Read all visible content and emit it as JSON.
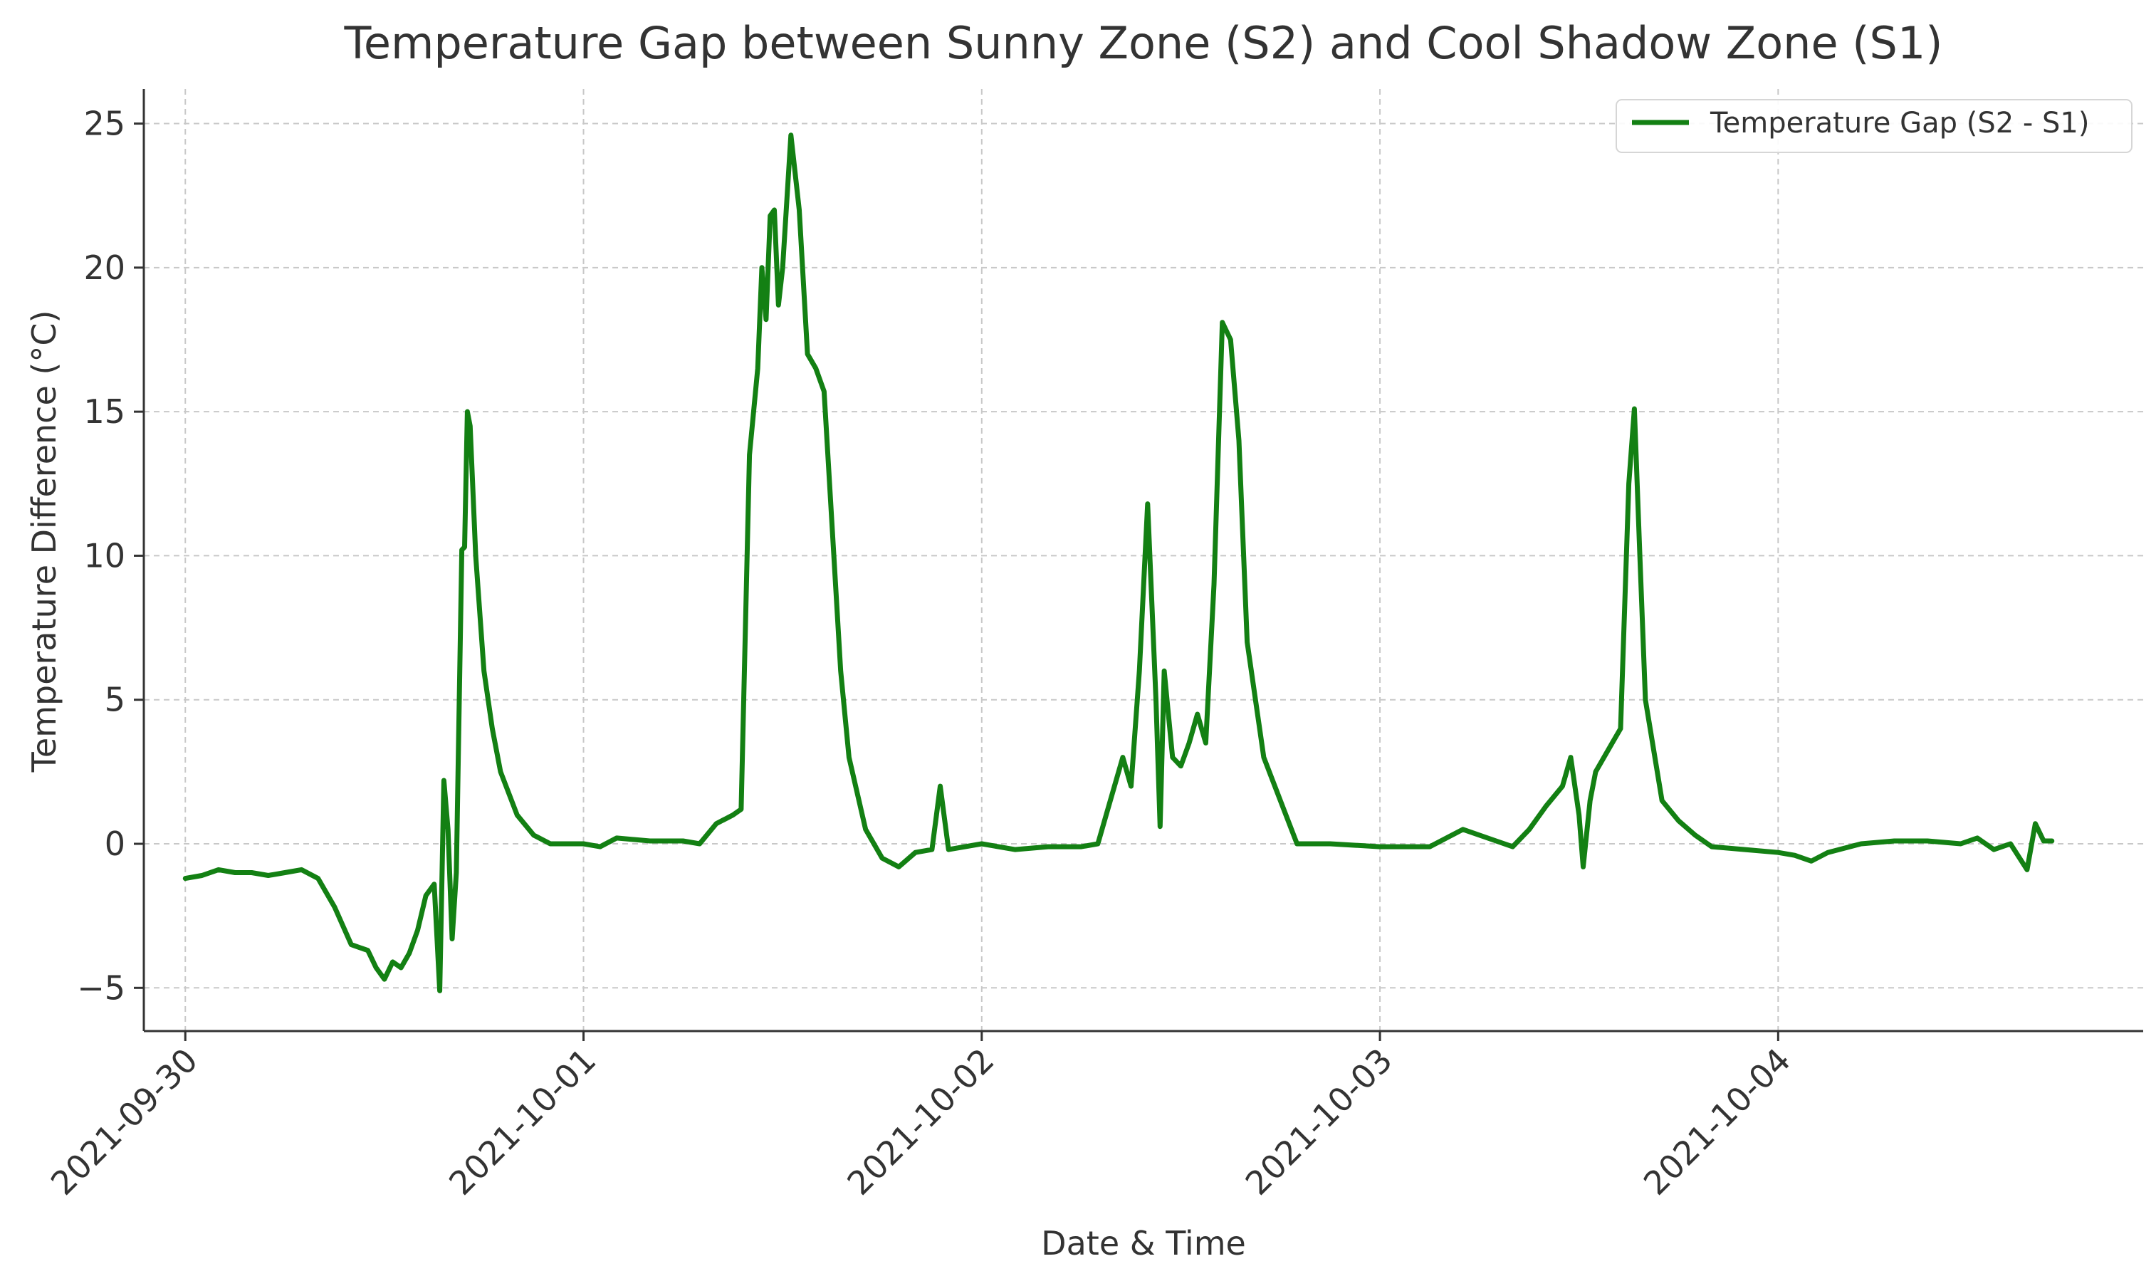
{
  "chart_data": {
    "type": "line",
    "title": "Temperature Gap between Sunny Zone (S2) and Cool Shadow Zone (S1)",
    "xlabel": "Date & Time",
    "ylabel": "Temperature Difference (°C)",
    "x_type": "datetime",
    "xlim": [
      "2021-09-29T21:30",
      "2021-10-04T22:00"
    ],
    "ylim": [
      -6.5,
      26.2
    ],
    "x_ticks": [
      "2021-09-30",
      "2021-10-01",
      "2021-10-02",
      "2021-10-03",
      "2021-10-04"
    ],
    "y_ticks": [
      -5,
      0,
      5,
      10,
      15,
      20,
      25
    ],
    "y_tick_labels": [
      "−5",
      "0",
      "5",
      "10",
      "15",
      "20",
      "25"
    ],
    "grid": true,
    "grid_style": "dashed",
    "legend_position": "top-right",
    "series": [
      {
        "name": "Temperature Gap (S2 - S1)",
        "color": "#138013",
        "points": [
          [
            "2021-09-30T00:00",
            -1.2
          ],
          [
            "2021-09-30T01:00",
            -1.1
          ],
          [
            "2021-09-30T02:00",
            -0.9
          ],
          [
            "2021-09-30T03:00",
            -1.0
          ],
          [
            "2021-09-30T04:00",
            -1.0
          ],
          [
            "2021-09-30T05:00",
            -1.1
          ],
          [
            "2021-09-30T06:00",
            -1.0
          ],
          [
            "2021-09-30T07:00",
            -0.9
          ],
          [
            "2021-09-30T08:00",
            -1.2
          ],
          [
            "2021-09-30T09:00",
            -2.2
          ],
          [
            "2021-09-30T10:00",
            -3.5
          ],
          [
            "2021-09-30T10:30",
            -3.6
          ],
          [
            "2021-09-30T11:00",
            -3.7
          ],
          [
            "2021-09-30T11:30",
            -4.3
          ],
          [
            "2021-09-30T12:00",
            -4.7
          ],
          [
            "2021-09-30T12:30",
            -4.1
          ],
          [
            "2021-09-30T13:00",
            -4.3
          ],
          [
            "2021-09-30T13:30",
            -3.8
          ],
          [
            "2021-09-30T14:00",
            -3.0
          ],
          [
            "2021-09-30T14:30",
            -1.8
          ],
          [
            "2021-09-30T15:00",
            -1.4
          ],
          [
            "2021-09-30T15:20",
            -5.1
          ],
          [
            "2021-09-30T15:35",
            2.2
          ],
          [
            "2021-09-30T15:50",
            0.5
          ],
          [
            "2021-09-30T16:05",
            -3.3
          ],
          [
            "2021-09-30T16:20",
            -1.0
          ],
          [
            "2021-09-30T16:40",
            10.2
          ],
          [
            "2021-09-30T16:50",
            10.3
          ],
          [
            "2021-09-30T17:00",
            15.0
          ],
          [
            "2021-09-30T17:10",
            14.5
          ],
          [
            "2021-09-30T17:30",
            10.0
          ],
          [
            "2021-09-30T18:00",
            6.0
          ],
          [
            "2021-09-30T18:30",
            4.0
          ],
          [
            "2021-09-30T19:00",
            2.5
          ],
          [
            "2021-09-30T20:00",
            1.0
          ],
          [
            "2021-09-30T21:00",
            0.3
          ],
          [
            "2021-09-30T22:00",
            0.0
          ],
          [
            "2021-10-01T00:00",
            0.0
          ],
          [
            "2021-10-01T01:00",
            -0.1
          ],
          [
            "2021-10-01T02:00",
            0.2
          ],
          [
            "2021-10-01T04:00",
            0.1
          ],
          [
            "2021-10-01T06:00",
            0.1
          ],
          [
            "2021-10-01T07:00",
            0.0
          ],
          [
            "2021-10-01T08:00",
            0.7
          ],
          [
            "2021-10-01T09:00",
            1.0
          ],
          [
            "2021-10-01T09:30",
            1.2
          ],
          [
            "2021-10-01T10:00",
            13.5
          ],
          [
            "2021-10-01T10:30",
            16.5
          ],
          [
            "2021-10-01T10:45",
            20.0
          ],
          [
            "2021-10-01T11:00",
            18.2
          ],
          [
            "2021-10-01T11:15",
            21.8
          ],
          [
            "2021-10-01T11:30",
            22.0
          ],
          [
            "2021-10-01T11:45",
            18.7
          ],
          [
            "2021-10-01T12:00",
            20.0
          ],
          [
            "2021-10-01T12:30",
            24.6
          ],
          [
            "2021-10-01T13:00",
            22.0
          ],
          [
            "2021-10-01T13:30",
            17.0
          ],
          [
            "2021-10-01T14:00",
            16.5
          ],
          [
            "2021-10-01T14:30",
            15.7
          ],
          [
            "2021-10-01T15:30",
            6.0
          ],
          [
            "2021-10-01T16:00",
            3.0
          ],
          [
            "2021-10-01T17:00",
            0.5
          ],
          [
            "2021-10-01T18:00",
            -0.5
          ],
          [
            "2021-10-01T19:00",
            -0.8
          ],
          [
            "2021-10-01T20:00",
            -0.3
          ],
          [
            "2021-10-01T21:00",
            -0.2
          ],
          [
            "2021-10-01T21:30",
            2.0
          ],
          [
            "2021-10-01T22:00",
            -0.2
          ],
          [
            "2021-10-02T00:00",
            0.0
          ],
          [
            "2021-10-02T02:00",
            -0.2
          ],
          [
            "2021-10-02T04:00",
            -0.1
          ],
          [
            "2021-10-02T06:00",
            -0.1
          ],
          [
            "2021-10-02T07:00",
            0.0
          ],
          [
            "2021-10-02T08:00",
            2.0
          ],
          [
            "2021-10-02T08:30",
            3.0
          ],
          [
            "2021-10-02T09:00",
            2.0
          ],
          [
            "2021-10-02T09:30",
            6.0
          ],
          [
            "2021-10-02T10:00",
            11.8
          ],
          [
            "2021-10-02T10:30",
            5.0
          ],
          [
            "2021-10-02T10:45",
            0.6
          ],
          [
            "2021-10-02T11:00",
            6.0
          ],
          [
            "2021-10-02T11:30",
            3.0
          ],
          [
            "2021-10-02T12:00",
            2.7
          ],
          [
            "2021-10-02T12:30",
            3.5
          ],
          [
            "2021-10-02T13:00",
            4.5
          ],
          [
            "2021-10-02T13:30",
            3.5
          ],
          [
            "2021-10-02T14:00",
            9.0
          ],
          [
            "2021-10-02T14:30",
            18.1
          ],
          [
            "2021-10-02T15:00",
            17.5
          ],
          [
            "2021-10-02T15:30",
            14.0
          ],
          [
            "2021-10-02T16:00",
            7.0
          ],
          [
            "2021-10-02T17:00",
            3.0
          ],
          [
            "2021-10-02T18:00",
            1.5
          ],
          [
            "2021-10-02T19:00",
            0.0
          ],
          [
            "2021-10-02T21:00",
            0.0
          ],
          [
            "2021-10-03T00:00",
            -0.1
          ],
          [
            "2021-10-03T03:00",
            -0.1
          ],
          [
            "2021-10-03T05:00",
            0.5
          ],
          [
            "2021-10-03T07:00",
            0.1
          ],
          [
            "2021-10-03T08:00",
            -0.1
          ],
          [
            "2021-10-03T09:00",
            0.5
          ],
          [
            "2021-10-03T10:00",
            1.3
          ],
          [
            "2021-10-03T11:00",
            2.0
          ],
          [
            "2021-10-03T11:30",
            3.0
          ],
          [
            "2021-10-03T12:00",
            1.0
          ],
          [
            "2021-10-03T12:15",
            -0.8
          ],
          [
            "2021-10-03T12:40",
            1.5
          ],
          [
            "2021-10-03T13:00",
            2.5
          ],
          [
            "2021-10-03T14:00",
            3.5
          ],
          [
            "2021-10-03T14:30",
            4.0
          ],
          [
            "2021-10-03T15:00",
            12.5
          ],
          [
            "2021-10-03T15:20",
            15.1
          ],
          [
            "2021-10-03T15:40",
            10.0
          ],
          [
            "2021-10-03T16:00",
            5.0
          ],
          [
            "2021-10-03T17:00",
            1.5
          ],
          [
            "2021-10-03T18:00",
            0.8
          ],
          [
            "2021-10-03T19:00",
            0.3
          ],
          [
            "2021-10-03T20:00",
            -0.1
          ],
          [
            "2021-10-03T22:00",
            -0.2
          ],
          [
            "2021-10-04T00:00",
            -0.3
          ],
          [
            "2021-10-04T01:00",
            -0.4
          ],
          [
            "2021-10-04T02:00",
            -0.6
          ],
          [
            "2021-10-04T03:00",
            -0.3
          ],
          [
            "2021-10-04T05:00",
            0.0
          ],
          [
            "2021-10-04T07:00",
            0.1
          ],
          [
            "2021-10-04T09:00",
            0.1
          ],
          [
            "2021-10-04T11:00",
            0.0
          ],
          [
            "2021-10-04T12:00",
            0.2
          ],
          [
            "2021-10-04T13:00",
            -0.2
          ],
          [
            "2021-10-04T14:00",
            0.0
          ],
          [
            "2021-10-04T15:00",
            -0.9
          ],
          [
            "2021-10-04T15:30",
            0.7
          ],
          [
            "2021-10-04T16:00",
            0.1
          ],
          [
            "2021-10-04T16:30",
            0.1
          ]
        ]
      }
    ]
  }
}
